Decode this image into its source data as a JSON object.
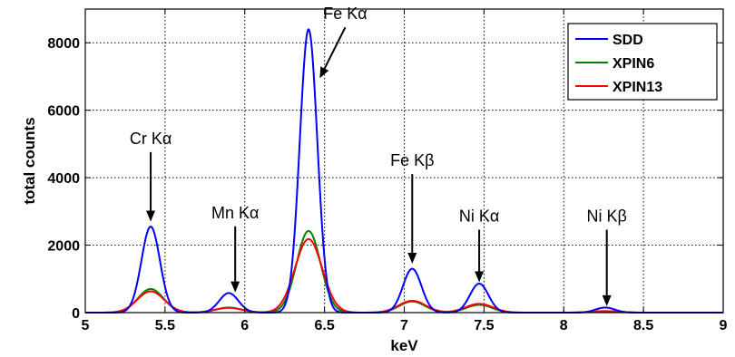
{
  "chart_data": {
    "type": "line",
    "xlabel": "keV",
    "ylabel": "total counts",
    "xlim": [
      5,
      9
    ],
    "ylim": [
      0,
      9000
    ],
    "xticks": [
      "5",
      "5.5",
      "6",
      "6.5",
      "7",
      "7.5",
      "8",
      "8.5",
      "9"
    ],
    "yticks": [
      "0",
      "2000",
      "4000",
      "6000",
      "8000"
    ],
    "grid": true,
    "legend_position": "top-right",
    "colors": {
      "SDD": "#0000ff",
      "XPIN6": "#008000",
      "XPIN13": "#ff0000"
    },
    "series": [
      {
        "name": "SDD",
        "peaks": [
          {
            "center": 5.41,
            "height": 2550,
            "sigma": 0.058
          },
          {
            "center": 5.9,
            "height": 580,
            "sigma": 0.06
          },
          {
            "center": 6.4,
            "height": 8400,
            "sigma": 0.055
          },
          {
            "center": 7.05,
            "height": 1300,
            "sigma": 0.058
          },
          {
            "center": 7.47,
            "height": 860,
            "sigma": 0.058
          },
          {
            "center": 8.26,
            "height": 150,
            "sigma": 0.06
          }
        ]
      },
      {
        "name": "XPIN6",
        "peaks": [
          {
            "center": 5.41,
            "height": 700,
            "sigma": 0.08
          },
          {
            "center": 5.9,
            "height": 150,
            "sigma": 0.08
          },
          {
            "center": 6.4,
            "height": 2420,
            "sigma": 0.075
          },
          {
            "center": 7.05,
            "height": 330,
            "sigma": 0.08
          },
          {
            "center": 7.47,
            "height": 230,
            "sigma": 0.08
          },
          {
            "center": 8.26,
            "height": 40,
            "sigma": 0.08
          }
        ]
      },
      {
        "name": "XPIN13",
        "peaks": [
          {
            "center": 5.41,
            "height": 630,
            "sigma": 0.085
          },
          {
            "center": 5.9,
            "height": 140,
            "sigma": 0.085
          },
          {
            "center": 6.4,
            "height": 2180,
            "sigma": 0.085
          },
          {
            "center": 7.05,
            "height": 350,
            "sigma": 0.085
          },
          {
            "center": 7.47,
            "height": 260,
            "sigma": 0.085
          },
          {
            "center": 8.26,
            "height": 45,
            "sigma": 0.085
          }
        ]
      }
    ],
    "annotations": [
      {
        "text": "Cr K",
        "greek": "α",
        "x": 5.41,
        "y": 2700,
        "label_x": 5.41,
        "label_y": 5000
      },
      {
        "text": "Mn K",
        "greek": "α",
        "x": 5.94,
        "y": 600,
        "label_x": 5.94,
        "label_y": 2800
      },
      {
        "text": "Fe K",
        "greek": "α",
        "x": 6.47,
        "y": 6950,
        "label_x": 6.63,
        "label_y": 8700
      },
      {
        "text": "Fe K",
        "greek": "β",
        "x": 7.05,
        "y": 1450,
        "label_x": 7.05,
        "label_y": 4350
      },
      {
        "text": "Ni K",
        "greek": "α",
        "x": 7.47,
        "y": 900,
        "label_x": 7.47,
        "label_y": 2700
      },
      {
        "text": "Ni K",
        "greek": "β",
        "x": 8.27,
        "y": 190,
        "label_x": 8.27,
        "label_y": 2700
      }
    ]
  }
}
